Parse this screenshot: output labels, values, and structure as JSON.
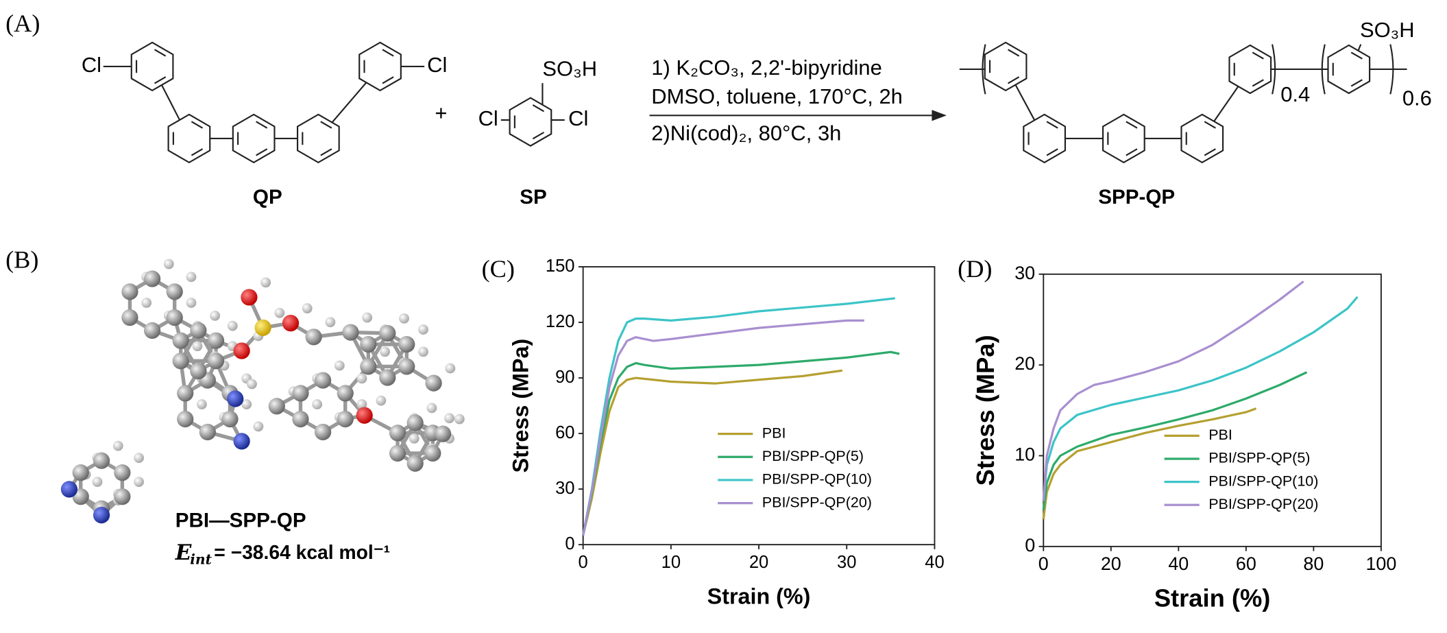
{
  "panels": {
    "a": "(A)",
    "b": "(B)",
    "c": "(C)",
    "d": "(D)"
  },
  "scheme": {
    "qp_substituents": [
      "Cl",
      "Cl"
    ],
    "qp_label": "QP",
    "plus": "+",
    "sp_substituents": [
      "SO₃H",
      "Cl",
      "Cl"
    ],
    "sp_label": "SP",
    "conditions": [
      "1) K₂CO₃, 2,2'-bipyridine",
      "DMSO, toluene, 170°C, 2h",
      "2)Ni(cod)₂, 80°C, 3h"
    ],
    "product_substituent": "SO₃H",
    "product_subscripts": [
      "0.4",
      "0.6"
    ],
    "product_label": "SPP-QP"
  },
  "model": {
    "label": "PBI—SPP-QP",
    "energy_symbol": "E",
    "energy_subscript": "int",
    "energy_value": "= −38.64 kcal mol⁻¹"
  },
  "chart_data": [
    {
      "type": "line",
      "xlabel": "Strain (%)",
      "ylabel": "Stress (MPa)",
      "xlim": [
        0,
        40
      ],
      "ylim": [
        0,
        150
      ],
      "xticks": [
        0,
        10,
        20,
        30,
        40
      ],
      "yticks": [
        0,
        30,
        60,
        90,
        120,
        150
      ],
      "legend": "lower right",
      "series": [
        {
          "name": "PBI",
          "color": "#b5a030",
          "x": [
            0,
            1,
            2,
            3,
            4,
            5,
            6,
            8,
            10,
            15,
            20,
            25,
            29.5
          ],
          "values": [
            5,
            25,
            50,
            72,
            85,
            89,
            90,
            89,
            88,
            87,
            89,
            91,
            94
          ]
        },
        {
          "name": "PBI/SPP-QP(5)",
          "color": "#2eaa6a",
          "x": [
            0,
            1,
            2,
            3,
            4,
            5,
            6,
            7,
            10,
            15,
            20,
            25,
            30,
            35,
            36
          ],
          "values": [
            5,
            28,
            55,
            78,
            90,
            96,
            98,
            97,
            95,
            96,
            97,
            99,
            101,
            104,
            103
          ]
        },
        {
          "name": "PBI/SPP-QP(10)",
          "color": "#3cc4c8",
          "x": [
            0,
            1,
            2,
            3,
            4,
            5,
            6,
            7,
            10,
            15,
            20,
            25,
            30,
            35.5
          ],
          "values": [
            5,
            30,
            62,
            90,
            110,
            120,
            122,
            122,
            121,
            123,
            126,
            128,
            130,
            133
          ]
        },
        {
          "name": "PBI/SPP-QP(20)",
          "color": "#a98fd0",
          "x": [
            0,
            1,
            2,
            3,
            4,
            5,
            6,
            8,
            10,
            15,
            20,
            25,
            30,
            32
          ],
          "values": [
            5,
            29,
            58,
            85,
            102,
            110,
            112,
            110,
            111,
            114,
            117,
            119,
            121,
            121
          ]
        }
      ]
    },
    {
      "type": "line",
      "xlabel": "Strain (%)",
      "ylabel": "Stress (MPa)",
      "xlim": [
        0,
        100
      ],
      "ylim": [
        0,
        30
      ],
      "xticks": [
        0,
        20,
        40,
        60,
        80,
        100
      ],
      "yticks": [
        0,
        10,
        20,
        30
      ],
      "legend": "lower right",
      "series": [
        {
          "name": "PBI",
          "color": "#b5a030",
          "x": [
            0,
            1,
            3,
            5,
            10,
            20,
            30,
            40,
            50,
            60,
            63
          ],
          "values": [
            3,
            6,
            8,
            9,
            10.5,
            11.5,
            12.5,
            13.3,
            14,
            14.8,
            15.2
          ]
        },
        {
          "name": "PBI/SPP-QP(5)",
          "color": "#2eaa6a",
          "x": [
            0,
            1,
            3,
            5,
            10,
            20,
            30,
            40,
            50,
            60,
            70,
            78
          ],
          "values": [
            4,
            7,
            9,
            10,
            11,
            12.3,
            13.1,
            14,
            15,
            16.3,
            17.8,
            19.2
          ]
        },
        {
          "name": "PBI/SPP-QP(10)",
          "color": "#3cc4c8",
          "x": [
            0,
            1,
            3,
            5,
            10,
            20,
            30,
            40,
            50,
            60,
            70,
            80,
            90,
            93
          ],
          "values": [
            5,
            9,
            11.5,
            13,
            14.5,
            15.6,
            16.4,
            17.2,
            18.3,
            19.7,
            21.5,
            23.6,
            26.2,
            27.5
          ]
        },
        {
          "name": "PBI/SPP-QP(20)",
          "color": "#a98fd0",
          "x": [
            0,
            1,
            3,
            5,
            10,
            15,
            20,
            30,
            40,
            50,
            60,
            70,
            77
          ],
          "values": [
            5,
            10,
            13,
            15,
            16.8,
            17.8,
            18.2,
            19.2,
            20.4,
            22.2,
            24.6,
            27.2,
            29.2
          ]
        }
      ]
    }
  ]
}
